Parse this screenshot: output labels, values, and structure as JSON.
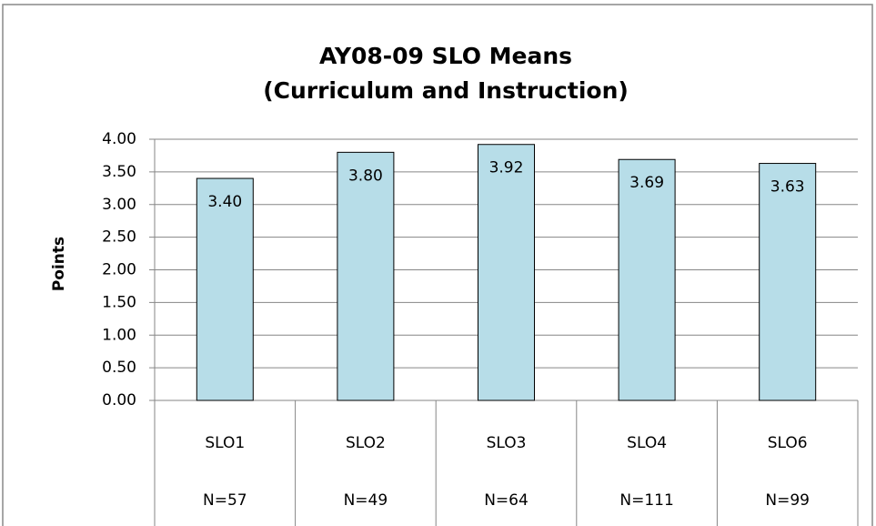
{
  "chart_data": {
    "type": "bar",
    "title": [
      "AY08-09 SLO Means",
      "(Curriculum and Instruction)"
    ],
    "y_label": "Points",
    "categories": [
      "SLO1",
      "SLO2",
      "SLO3",
      "SLO4",
      "SLO6"
    ],
    "category_sublabels": [
      "N=57",
      "N=49",
      "N=64",
      "N=111",
      "N=99"
    ],
    "values": [
      3.4,
      3.8,
      3.92,
      3.69,
      3.63
    ],
    "value_labels": [
      "3.40",
      "3.80",
      "3.92",
      "3.69",
      "3.63"
    ],
    "color": "#b7dde8",
    "ylim": [
      0,
      4
    ],
    "yticks": [
      {
        "value": 0,
        "label": "0.00"
      },
      {
        "value": 0.5,
        "label": "0.50"
      },
      {
        "value": 1,
        "label": "1.00"
      },
      {
        "value": 1.5,
        "label": "1.50"
      },
      {
        "value": 2,
        "label": "2.00"
      },
      {
        "value": 2.5,
        "label": "2.50"
      },
      {
        "value": 3,
        "label": "3.00"
      },
      {
        "value": 3.5,
        "label": "3.50"
      },
      {
        "value": 4,
        "label": "4.00"
      }
    ],
    "grid": true
  }
}
